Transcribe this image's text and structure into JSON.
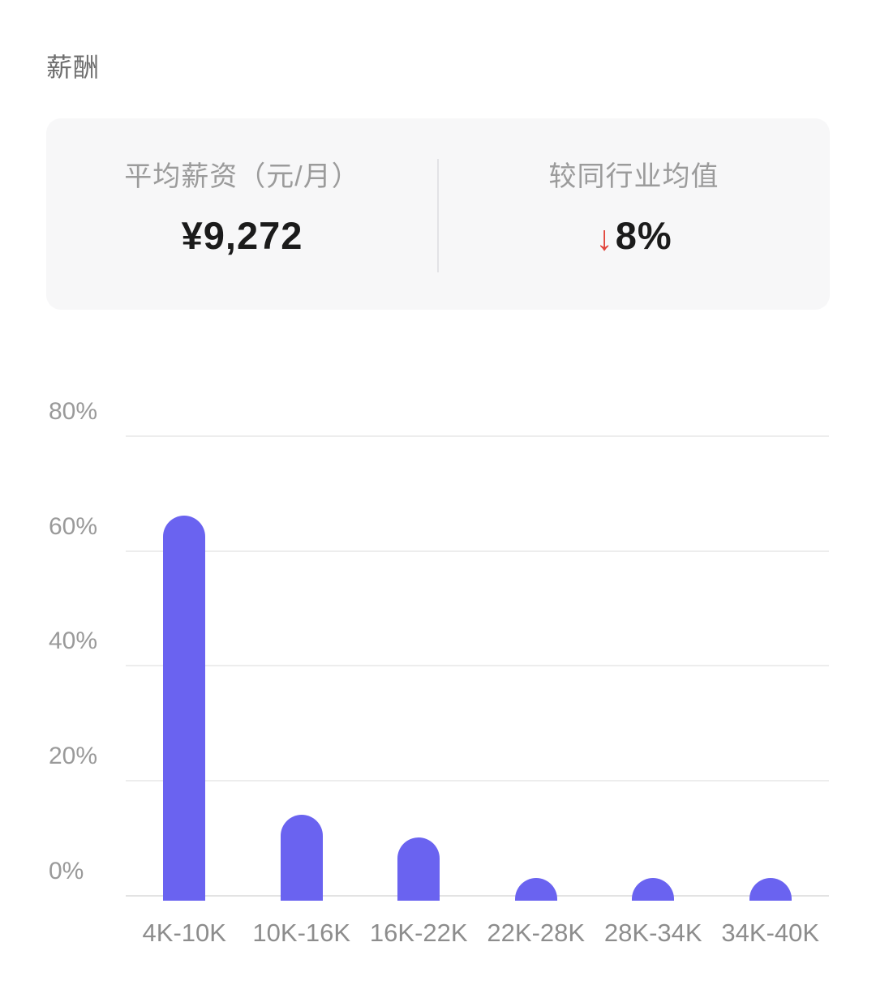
{
  "title": "薪酬",
  "summary": {
    "left": {
      "label": "平均薪资（元/月）",
      "value": "¥9,272"
    },
    "right": {
      "label": "较同行业均值",
      "arrow_icon": "↓",
      "value": "8%"
    },
    "arrow_color": "#e2443b"
  },
  "chart_data": {
    "type": "bar",
    "categories": [
      "4K-10K",
      "10K-16K",
      "16K-22K",
      "22K-28K",
      "28K-34K",
      "34K-40K"
    ],
    "values": [
      66,
      14,
      10,
      3,
      3,
      3
    ],
    "unit": "%",
    "title": "",
    "xlabel": "",
    "ylabel": "",
    "ylim": [
      0,
      80
    ],
    "yticks": [
      80,
      60,
      40,
      20,
      0
    ],
    "ytick_suffix": "%",
    "grid": true,
    "legend": "none",
    "bar_color": "#6a63f0",
    "gridline_color": "#ededed",
    "axis_line_color": "#e3e3e3",
    "y_tick_label_color": "#9a9a9a",
    "x_tick_label_color": "#8d8d8d"
  }
}
